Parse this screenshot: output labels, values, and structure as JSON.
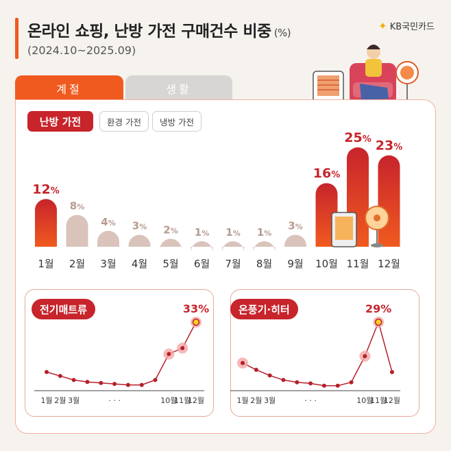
{
  "header": {
    "title": "온라인 쇼핑, 난방 가전 구매건수 비중",
    "title_unit": "(%)",
    "period": "(2024.10~2025.09)",
    "brand": "KB국민카드",
    "brand_mark": "KB"
  },
  "tabs": [
    {
      "label": "계절",
      "active": true
    },
    {
      "label": "생활",
      "active": false
    }
  ],
  "subtabs": [
    {
      "label": "난방 가전",
      "active": true
    },
    {
      "label": "환경 가전",
      "active": false
    },
    {
      "label": "냉방 가전",
      "active": false
    }
  ],
  "colors": {
    "accent": "#f05a1f",
    "deep_red": "#c7242c",
    "muted_bar": "#d9c3bb",
    "line": "#b5202a"
  },
  "chart_data": [
    {
      "type": "bar",
      "series_label": "난방 가전",
      "categories": [
        "1월",
        "2월",
        "3월",
        "4월",
        "5월",
        "6월",
        "7월",
        "8월",
        "9월",
        "10월",
        "11월",
        "12월"
      ],
      "values": [
        12,
        8,
        4,
        3,
        2,
        1,
        1,
        1,
        3,
        16,
        25,
        23
      ],
      "data_labels": [
        "12%",
        "8%",
        "4%",
        "3%",
        "2%",
        "1%",
        "1%",
        "1%",
        "3%",
        "16%",
        "25%",
        "23%"
      ],
      "highlighted": [
        true,
        false,
        false,
        false,
        false,
        false,
        false,
        false,
        false,
        true,
        true,
        true
      ],
      "ylim": [
        0,
        25
      ]
    },
    {
      "type": "line",
      "title": "전기매트류",
      "x_tick_labels": [
        "1월",
        "2월",
        "3월",
        "· · ·",
        "10월",
        "11월",
        "12월"
      ],
      "values": [
        8,
        6,
        4,
        3,
        2.5,
        2,
        1.5,
        1.5,
        4,
        17,
        20,
        33
      ],
      "highlighted": [
        false,
        false,
        false,
        false,
        false,
        false,
        false,
        false,
        false,
        true,
        true,
        true
      ],
      "peak_label": "33%",
      "ylim": [
        0,
        33
      ]
    },
    {
      "type": "line",
      "title": "온풍기·히터",
      "x_tick_labels": [
        "1월",
        "2월",
        "3월",
        "· · ·",
        "10월",
        "11월",
        "12월"
      ],
      "values": [
        11,
        8,
        5.5,
        3.5,
        2.5,
        2,
        1,
        1,
        2.5,
        14,
        29,
        7
      ],
      "highlighted": [
        true,
        false,
        false,
        false,
        false,
        false,
        false,
        false,
        false,
        true,
        true,
        false
      ],
      "peak_label": "29%",
      "ylim": [
        0,
        29
      ]
    }
  ]
}
